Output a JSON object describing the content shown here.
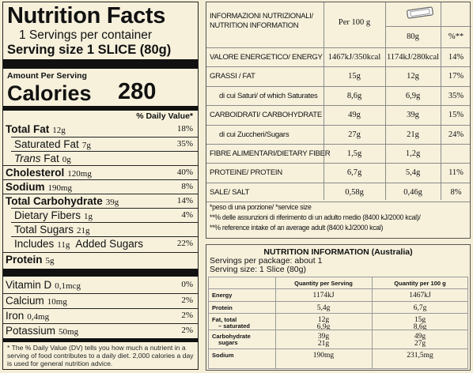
{
  "us": {
    "title": "Nutrition Facts",
    "servings": "1 Servings per container",
    "serving_size": "Serving size 1 SLICE (80g)",
    "amount_per_serving": "Amount Per Serving",
    "calories_label": "Calories",
    "calories_value": "280",
    "dv_header": "% Daily Value*",
    "rows": [
      {
        "name": "Total Fat",
        "amount": "12g",
        "pct": "18%",
        "bold": true
      },
      {
        "name": "Saturated Fat",
        "amount": "7g",
        "pct": "35%"
      },
      {
        "name": "Trans Fat",
        "amount": "0g",
        "pct": ""
      },
      {
        "name": "Cholesterol",
        "amount": "120mg",
        "pct": "40%",
        "bold": true
      },
      {
        "name": "Sodium",
        "amount": "190mg",
        "pct": "8%",
        "bold": true
      },
      {
        "name": "Total Carbohydrate",
        "amount": "39g",
        "pct": "14%",
        "bold": true
      },
      {
        "name": "Dietary Fibers",
        "amount": "1g",
        "pct": "4%"
      },
      {
        "name": "Total Sugars",
        "amount": "21g",
        "pct": ""
      },
      {
        "name_pre": "Includes",
        "amount": "11g",
        "name_post": "Added Sugars",
        "pct": "22%"
      },
      {
        "name": "Protein",
        "amount": "5g",
        "pct": "",
        "bold": true
      },
      {
        "name": "Vitamin D",
        "amount": "0,1mcg",
        "pct": "0%"
      },
      {
        "name": "Calcium",
        "amount": "10mg",
        "pct": "2%"
      },
      {
        "name": "Iron",
        "amount": "0,4mg",
        "pct": "2%"
      },
      {
        "name": "Potassium",
        "amount": "50mg",
        "pct": "2%"
      }
    ],
    "footnote": "* The % Daily Value (DV) tells you how much a nutrient in a serving of food contributes to a daily diet. 2,000 calories a day is used for general nutrition advice."
  },
  "eu": {
    "header_label_1": "INFORMAZIONI NUTRIZIONALI/",
    "header_label_2": "NUTRITION INFORMATION",
    "col_per100": "Per 100 g",
    "col_80g": "80g",
    "col_pct": "%**",
    "rows": [
      {
        "label": "VALORE ENERGETICO/ ENERGY",
        "v100": "1467kJ/350kcal",
        "v80": "1174kJ/280kcal",
        "pct": "14%"
      },
      {
        "label": "GRASSI / FAT",
        "v100": "15g",
        "v80": "12g",
        "pct": "17%"
      },
      {
        "label": "di cui Saturi/ of which Saturates",
        "v100": "8,6g",
        "v80": "6,9g",
        "pct": "35%",
        "indent": true
      },
      {
        "label": "CARBOIDRATI/ CARBOHYDRATE",
        "v100": "49g",
        "v80": "39g",
        "pct": "15%"
      },
      {
        "label": "di cui Zuccheri/Sugars",
        "v100": "27g",
        "v80": "21g",
        "pct": "24%",
        "indent": true
      },
      {
        "label": "FIBRE ALIMENTARI/DIETARY FIBER",
        "v100": "1,5g",
        "v80": "1,2g",
        "pct": ""
      },
      {
        "label": "PROTEINE/ PROTEIN",
        "v100": "6,7g",
        "v80": "5,4g",
        "pct": "11%"
      },
      {
        "label": "SALE/ SALT",
        "v100": "0,58g",
        "v80": "0,46g",
        "pct": "8%"
      }
    ],
    "note1": "*peso di una porzione/ *service size",
    "note2": "**% delle assunzioni di riferimento di un adulto medio (8400 kJ/2000 kcal)/",
    "note3": "**% reference intake of an average adult (8400 kJ/2000 kcal)",
    "icon": "biscuit-slice-icon"
  },
  "au": {
    "title": "NUTRITION INFORMATION (Australia)",
    "servings": "Servings per package:  about 1",
    "serving_size": "Serving size: 1 Slice (80g)",
    "col_serving": "Quantity per Serving",
    "col_100g": "Quantity per 100 g",
    "rows": [
      {
        "label": "Energy",
        "serving": "1174kJ",
        "per100": "1467kJ"
      },
      {
        "label": "Protein",
        "serving": "5,4g",
        "per100": "6,7g"
      },
      {
        "label": "Fat, total",
        "label2": "– saturated",
        "serving": "12g",
        "serving2": "6,9g",
        "per100": "15g",
        "per1002": "8,6g"
      },
      {
        "label": "Carbohydrate",
        "label2": "sugars",
        "serving": "39g",
        "serving2": "21g",
        "per100": "49g",
        "per1002": "27g"
      },
      {
        "label": "Sodium",
        "serving": "190mg",
        "per100": "231,5mg"
      }
    ]
  }
}
